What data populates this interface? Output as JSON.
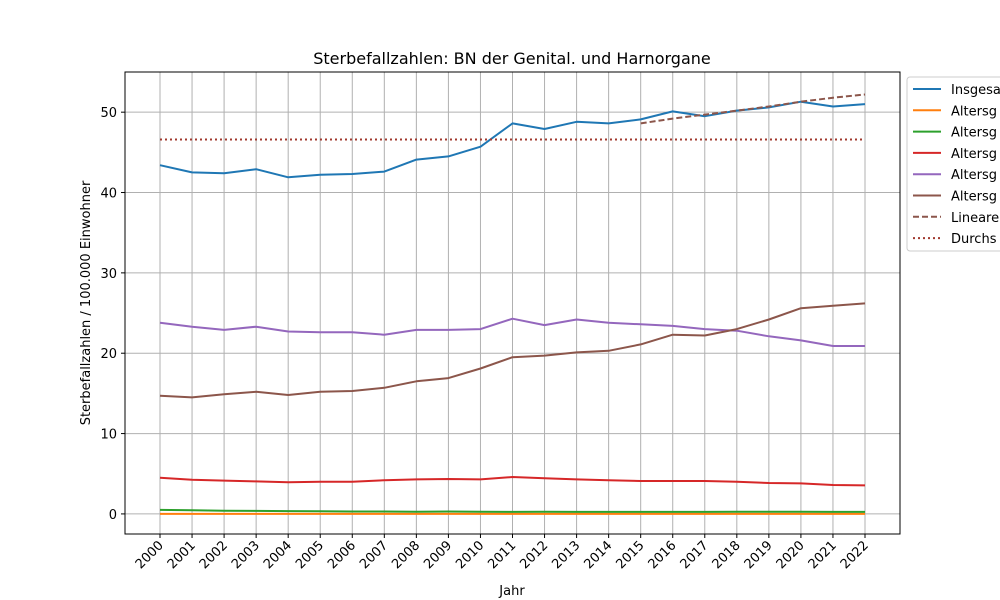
{
  "chart_data": {
    "type": "line",
    "title": "Sterbefallzahlen: BN der Genital. und Harnorgane",
    "xlabel": "Jahr",
    "ylabel": "Sterbefallzahlen / 100.000 Einwohner",
    "x": [
      "2000",
      "2001",
      "2002",
      "2003",
      "2004",
      "2005",
      "2006",
      "2007",
      "2008",
      "2009",
      "2010",
      "2011",
      "2012",
      "2013",
      "2014",
      "2015",
      "2016",
      "2017",
      "2018",
      "2019",
      "2020",
      "2021",
      "2022"
    ],
    "ylim": [
      -2.5,
      55
    ],
    "yticks": [
      0,
      10,
      20,
      30,
      40,
      50
    ],
    "grid": true,
    "legend_position": "right",
    "series": [
      {
        "name": "Insgesa",
        "color": "#1f77b4",
        "style": "solid",
        "values": [
          43.4,
          42.5,
          42.4,
          42.9,
          41.9,
          42.2,
          42.3,
          42.6,
          44.1,
          44.5,
          45.7,
          48.6,
          47.9,
          48.8,
          48.6,
          49.1,
          50.1,
          49.5,
          50.2,
          50.6,
          51.3,
          50.7,
          51.0
        ]
      },
      {
        "name": "Altersg",
        "color": "#ff7f0e",
        "style": "solid",
        "values": [
          0.0,
          0.0,
          0.0,
          0.0,
          0.0,
          0.0,
          0.0,
          0.0,
          0.0,
          0.0,
          0.0,
          0.0,
          0.0,
          0.0,
          0.0,
          0.0,
          0.0,
          0.0,
          0.0,
          0.0,
          0.0,
          0.0,
          0.0
        ]
      },
      {
        "name": "Altersg",
        "color": "#2ca02c",
        "style": "solid",
        "values": [
          0.5,
          0.45,
          0.4,
          0.38,
          0.35,
          0.33,
          0.3,
          0.3,
          0.28,
          0.3,
          0.28,
          0.25,
          0.27,
          0.25,
          0.25,
          0.25,
          0.25,
          0.25,
          0.27,
          0.27,
          0.27,
          0.25,
          0.25
        ]
      },
      {
        "name": "Altersg",
        "color": "#d62728",
        "style": "solid",
        "values": [
          4.5,
          4.25,
          4.15,
          4.05,
          3.95,
          4.0,
          4.0,
          4.2,
          4.3,
          4.35,
          4.3,
          4.6,
          4.45,
          4.3,
          4.2,
          4.1,
          4.1,
          4.1,
          4.0,
          3.85,
          3.8,
          3.6,
          3.55
        ]
      },
      {
        "name": "Altersg",
        "color": "#9467bd",
        "style": "solid",
        "values": [
          23.8,
          23.3,
          22.9,
          23.3,
          22.7,
          22.6,
          22.6,
          22.3,
          22.9,
          22.9,
          23.0,
          24.3,
          23.5,
          24.2,
          23.8,
          23.6,
          23.4,
          23.0,
          22.8,
          22.1,
          21.6,
          20.9,
          20.9
        ]
      },
      {
        "name": "Altersg",
        "color": "#8c564b",
        "style": "solid",
        "values": [
          14.7,
          14.5,
          14.9,
          15.2,
          14.8,
          15.2,
          15.3,
          15.7,
          16.5,
          16.9,
          18.1,
          19.5,
          19.7,
          20.1,
          20.3,
          21.1,
          22.3,
          22.2,
          23.0,
          24.2,
          25.6,
          25.9,
          26.2
        ]
      },
      {
        "name": "Lineare",
        "color": "#8c564b",
        "style": "dashed",
        "values": [
          null,
          null,
          null,
          null,
          null,
          null,
          null,
          null,
          null,
          null,
          null,
          null,
          null,
          null,
          null,
          48.6,
          49.2,
          49.7,
          50.2,
          50.7,
          51.3,
          51.8,
          52.2
        ]
      },
      {
        "name": "Durchs",
        "color": "#a0392e",
        "style": "dotted",
        "values": [
          46.6,
          46.6,
          46.6,
          46.6,
          46.6,
          46.6,
          46.6,
          46.6,
          46.6,
          46.6,
          46.6,
          46.6,
          46.6,
          46.6,
          46.6,
          46.6,
          46.6,
          46.6,
          46.6,
          46.6,
          46.6,
          46.6,
          46.6
        ]
      }
    ]
  }
}
